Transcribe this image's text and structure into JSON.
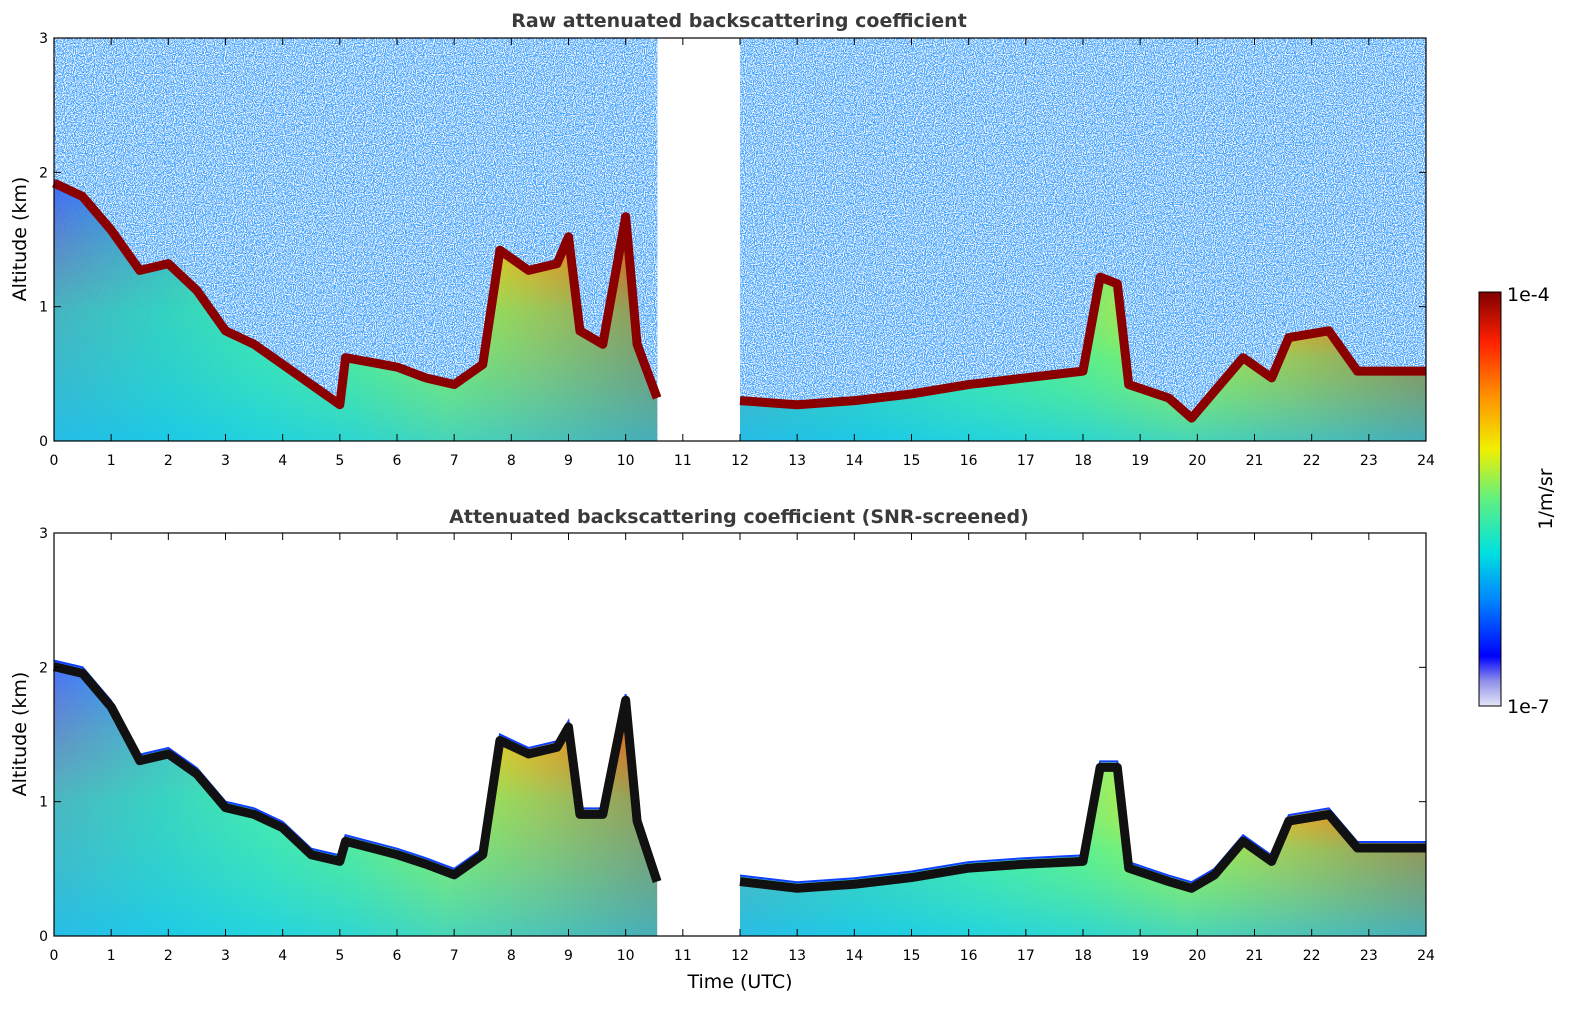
{
  "chart_data": [
    {
      "type": "heatmap",
      "title": "Raw attenuated backscattering coefficient",
      "xlabel": "",
      "ylabel": "Altitude (km)",
      "xlim": [
        0,
        24
      ],
      "ylim": [
        0,
        3
      ],
      "x_ticks": [
        "0",
        "1",
        "2",
        "3",
        "4",
        "5",
        "6",
        "7",
        "8",
        "9",
        "10",
        "11",
        "12",
        "13",
        "14",
        "15",
        "16",
        "17",
        "18",
        "19",
        "20",
        "21",
        "22",
        "23",
        "24"
      ],
      "y_ticks": [
        "0",
        "1",
        "2",
        "3"
      ],
      "data_gap_utc": [
        10.55,
        12.0
      ],
      "screened": false,
      "layer_top_km": [
        [
          0,
          1.95
        ],
        [
          0.5,
          1.85
        ],
        [
          1,
          1.6
        ],
        [
          1.5,
          1.3
        ],
        [
          2,
          1.35
        ],
        [
          2.5,
          1.15
        ],
        [
          3,
          0.85
        ],
        [
          3.5,
          0.75
        ],
        [
          4,
          0.6
        ],
        [
          4.5,
          0.45
        ],
        [
          5,
          0.3
        ],
        [
          5.1,
          0.65
        ],
        [
          6,
          0.58
        ],
        [
          6.5,
          0.5
        ],
        [
          7,
          0.45
        ],
        [
          7.5,
          0.6
        ],
        [
          7.8,
          1.45
        ],
        [
          8.3,
          1.3
        ],
        [
          8.8,
          1.35
        ],
        [
          9,
          1.55
        ],
        [
          9.2,
          0.85
        ],
        [
          9.6,
          0.75
        ],
        [
          10,
          1.7
        ],
        [
          10.2,
          0.75
        ],
        [
          10.55,
          0.35
        ],
        [
          12,
          0.33
        ],
        [
          13,
          0.3
        ],
        [
          14,
          0.33
        ],
        [
          15,
          0.38
        ],
        [
          16,
          0.45
        ],
        [
          17,
          0.5
        ],
        [
          18,
          0.55
        ],
        [
          18.3,
          1.25
        ],
        [
          18.6,
          1.2
        ],
        [
          18.8,
          0.45
        ],
        [
          19.5,
          0.35
        ],
        [
          19.9,
          0.2
        ],
        [
          20.3,
          0.4
        ],
        [
          20.8,
          0.65
        ],
        [
          21.3,
          0.5
        ],
        [
          21.6,
          0.8
        ],
        [
          22.3,
          0.85
        ],
        [
          22.8,
          0.55
        ],
        [
          24,
          0.55
        ]
      ]
    },
    {
      "type": "heatmap",
      "title": "Attenuated backscattering coefficient (SNR-screened)",
      "xlabel": "Time (UTC)",
      "ylabel": "Altitude (km)",
      "xlim": [
        0,
        24
      ],
      "ylim": [
        0,
        3
      ],
      "x_ticks": [
        "0",
        "1",
        "2",
        "3",
        "4",
        "5",
        "6",
        "7",
        "8",
        "9",
        "10",
        "11",
        "12",
        "13",
        "14",
        "15",
        "16",
        "17",
        "18",
        "19",
        "20",
        "21",
        "22",
        "23",
        "24"
      ],
      "y_ticks": [
        "0",
        "1",
        "2",
        "3"
      ],
      "data_gap_utc": [
        10.55,
        12.0
      ],
      "screened": true,
      "layer_top_km": [
        [
          0,
          2.05
        ],
        [
          0.5,
          2.0
        ],
        [
          1,
          1.75
        ],
        [
          1.5,
          1.35
        ],
        [
          2,
          1.4
        ],
        [
          2.5,
          1.25
        ],
        [
          3,
          1.0
        ],
        [
          3.5,
          0.95
        ],
        [
          4,
          0.85
        ],
        [
          4.5,
          0.65
        ],
        [
          5,
          0.6
        ],
        [
          5.1,
          0.75
        ],
        [
          6,
          0.65
        ],
        [
          6.5,
          0.58
        ],
        [
          7,
          0.5
        ],
        [
          7.5,
          0.65
        ],
        [
          7.8,
          1.5
        ],
        [
          8.3,
          1.4
        ],
        [
          8.8,
          1.45
        ],
        [
          9,
          1.6
        ],
        [
          9.2,
          0.95
        ],
        [
          9.6,
          0.95
        ],
        [
          10,
          1.8
        ],
        [
          10.2,
          0.9
        ],
        [
          10.55,
          0.45
        ],
        [
          12,
          0.45
        ],
        [
          13,
          0.4
        ],
        [
          14,
          0.43
        ],
        [
          15,
          0.48
        ],
        [
          16,
          0.55
        ],
        [
          17,
          0.58
        ],
        [
          18,
          0.6
        ],
        [
          18.3,
          1.3
        ],
        [
          18.6,
          1.3
        ],
        [
          18.8,
          0.55
        ],
        [
          19.5,
          0.45
        ],
        [
          19.9,
          0.4
        ],
        [
          20.3,
          0.5
        ],
        [
          20.8,
          0.75
        ],
        [
          21.3,
          0.6
        ],
        [
          21.6,
          0.9
        ],
        [
          22.3,
          0.95
        ],
        [
          22.8,
          0.7
        ],
        [
          24,
          0.7
        ]
      ]
    }
  ],
  "colorbar": {
    "max_label": "1e-4",
    "min_label": "1e-7",
    "unit": "1/m/sr",
    "colors": [
      "#e6e6fa",
      "#c0c0f0",
      "#9090e8",
      "#0000ff",
      "#0050ff",
      "#00a0ff",
      "#00e0e0",
      "#40f0a0",
      "#a0f040",
      "#f0f000",
      "#ffc000",
      "#ff8000",
      "#ff3000",
      "#d00000",
      "#800000"
    ]
  }
}
